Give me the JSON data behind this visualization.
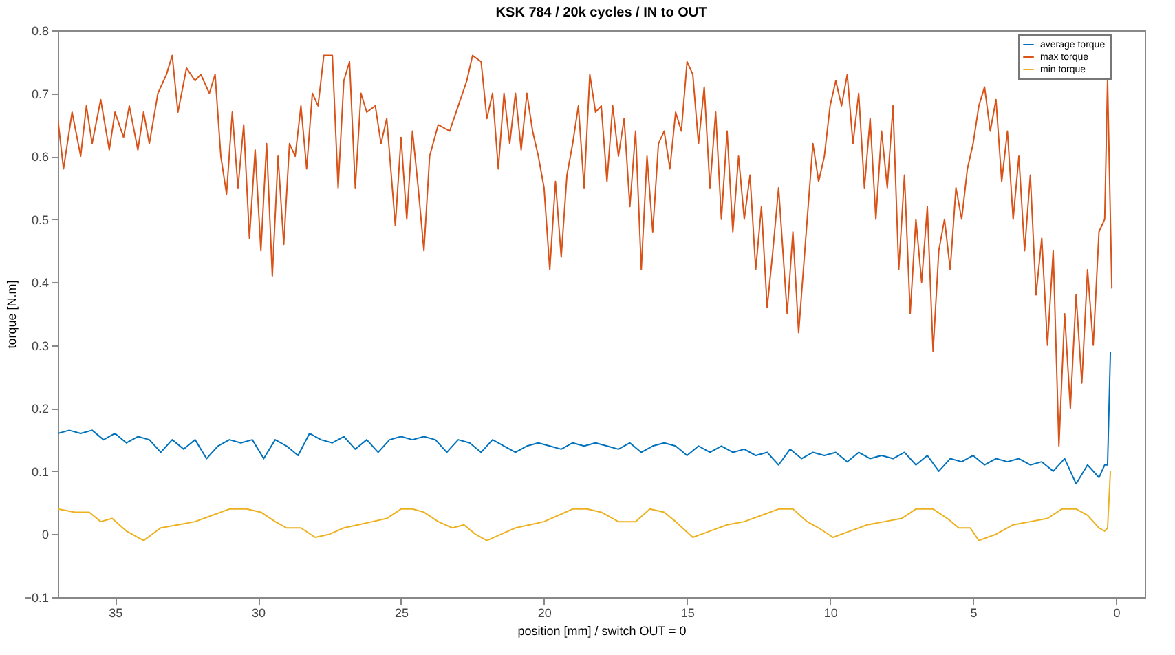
{
  "chart_data": {
    "type": "line",
    "title": "KSK 784 / 20k cycles / IN to OUT",
    "xlabel": "position [mm] / switch OUT = 0",
    "ylabel": "torque [N.m]",
    "xlim": [
      37,
      -1
    ],
    "xticks": [
      35,
      30,
      25,
      20,
      15,
      10,
      5,
      0
    ],
    "ylim": [
      -0.1,
      0.8
    ],
    "yticks": [
      -0.1,
      0,
      0.1,
      0.2,
      0.3,
      0.4,
      0.5,
      0.6,
      0.7,
      0.8
    ],
    "grid": false,
    "legend": "top right",
    "line_style": "solid",
    "marker": "none",
    "series": [
      {
        "name": "average torque",
        "color": "#0072bd",
        "x": [
          37,
          36.6,
          36.2,
          35.8,
          35.4,
          35,
          34.6,
          34.2,
          33.8,
          33.4,
          33,
          32.6,
          32.2,
          31.8,
          31.4,
          31,
          30.6,
          30.2,
          29.8,
          29.4,
          29,
          28.6,
          28.2,
          27.8,
          27.4,
          27,
          26.6,
          26.2,
          25.8,
          25.4,
          25,
          24.6,
          24.2,
          23.8,
          23.4,
          23,
          22.6,
          22.2,
          21.8,
          21.4,
          21,
          20.6,
          20.2,
          19.8,
          19.4,
          19,
          18.6,
          18.2,
          17.8,
          17.4,
          17,
          16.6,
          16.2,
          15.8,
          15.4,
          15,
          14.6,
          14.2,
          13.8,
          13.4,
          13,
          12.6,
          12.2,
          11.8,
          11.4,
          11,
          10.6,
          10.2,
          9.8,
          9.4,
          9,
          8.6,
          8.2,
          7.8,
          7.4,
          7,
          6.6,
          6.2,
          5.8,
          5.4,
          5,
          4.6,
          4.2,
          3.8,
          3.4,
          3,
          2.6,
          2.2,
          1.8,
          1.4,
          1,
          0.6,
          0.4,
          0.3,
          0.2
        ],
        "values": [
          0.16,
          0.165,
          0.16,
          0.165,
          0.15,
          0.16,
          0.145,
          0.155,
          0.15,
          0.13,
          0.15,
          0.135,
          0.15,
          0.12,
          0.14,
          0.15,
          0.145,
          0.15,
          0.12,
          0.15,
          0.14,
          0.125,
          0.16,
          0.15,
          0.145,
          0.155,
          0.135,
          0.15,
          0.13,
          0.15,
          0.155,
          0.15,
          0.155,
          0.15,
          0.13,
          0.15,
          0.145,
          0.13,
          0.15,
          0.14,
          0.13,
          0.14,
          0.145,
          0.14,
          0.135,
          0.145,
          0.14,
          0.145,
          0.14,
          0.135,
          0.145,
          0.13,
          0.14,
          0.145,
          0.14,
          0.125,
          0.14,
          0.13,
          0.14,
          0.13,
          0.135,
          0.125,
          0.13,
          0.11,
          0.135,
          0.12,
          0.13,
          0.125,
          0.13,
          0.115,
          0.13,
          0.12,
          0.125,
          0.12,
          0.13,
          0.11,
          0.125,
          0.1,
          0.12,
          0.115,
          0.125,
          0.11,
          0.12,
          0.115,
          0.12,
          0.11,
          0.115,
          0.1,
          0.12,
          0.08,
          0.11,
          0.09,
          0.11,
          0.11,
          0.29
        ]
      },
      {
        "name": "max torque",
        "color": "#d95319",
        "x": [
          37,
          36.8,
          36.5,
          36.2,
          36,
          35.8,
          35.5,
          35.2,
          35,
          34.7,
          34.5,
          34.2,
          34,
          33.8,
          33.5,
          33.2,
          33,
          32.8,
          32.5,
          32.2,
          32,
          31.7,
          31.5,
          31.3,
          31.1,
          30.9,
          30.7,
          30.5,
          30.3,
          30.1,
          29.9,
          29.7,
          29.5,
          29.3,
          29.1,
          28.9,
          28.7,
          28.5,
          28.3,
          28.1,
          27.9,
          27.7,
          27.4,
          27.2,
          27,
          26.8,
          26.6,
          26.4,
          26.2,
          25.9,
          25.7,
          25.5,
          25.2,
          25,
          24.8,
          24.6,
          24.4,
          24.2,
          24,
          23.7,
          23.3,
          23,
          22.7,
          22.5,
          22.2,
          22,
          21.8,
          21.6,
          21.4,
          21.2,
          21,
          20.8,
          20.6,
          20.4,
          20.2,
          20,
          19.8,
          19.6,
          19.4,
          19.2,
          19,
          18.8,
          18.6,
          18.4,
          18.2,
          18,
          17.8,
          17.6,
          17.4,
          17.2,
          17,
          16.8,
          16.6,
          16.4,
          16.2,
          16,
          15.8,
          15.6,
          15.4,
          15.2,
          15,
          14.8,
          14.6,
          14.4,
          14.2,
          14,
          13.8,
          13.6,
          13.4,
          13.2,
          13,
          12.8,
          12.6,
          12.4,
          12.2,
          12,
          11.8,
          11.5,
          11.3,
          11.1,
          11,
          10.8,
          10.6,
          10.4,
          10.2,
          10,
          9.8,
          9.6,
          9.4,
          9.2,
          9,
          8.8,
          8.6,
          8.4,
          8.2,
          8,
          7.8,
          7.6,
          7.4,
          7.2,
          7,
          6.8,
          6.6,
          6.4,
          6.2,
          6,
          5.8,
          5.6,
          5.4,
          5.2,
          5,
          4.8,
          4.6,
          4.4,
          4.2,
          4,
          3.8,
          3.6,
          3.4,
          3.2,
          3,
          2.8,
          2.6,
          2.4,
          2.2,
          2,
          1.8,
          1.6,
          1.4,
          1.2,
          1,
          0.8,
          0.6,
          0.4,
          0.3,
          0.15
        ],
        "values": [
          0.66,
          0.58,
          0.67,
          0.6,
          0.68,
          0.62,
          0.69,
          0.61,
          0.67,
          0.63,
          0.68,
          0.61,
          0.67,
          0.62,
          0.7,
          0.73,
          0.76,
          0.67,
          0.74,
          0.72,
          0.73,
          0.7,
          0.73,
          0.6,
          0.54,
          0.67,
          0.55,
          0.65,
          0.47,
          0.61,
          0.45,
          0.62,
          0.41,
          0.6,
          0.46,
          0.62,
          0.6,
          0.68,
          0.58,
          0.7,
          0.68,
          0.76,
          0.76,
          0.55,
          0.72,
          0.75,
          0.55,
          0.7,
          0.67,
          0.68,
          0.62,
          0.66,
          0.49,
          0.63,
          0.5,
          0.64,
          0.55,
          0.45,
          0.6,
          0.65,
          0.64,
          0.68,
          0.72,
          0.76,
          0.75,
          0.66,
          0.7,
          0.58,
          0.7,
          0.62,
          0.7,
          0.61,
          0.7,
          0.64,
          0.6,
          0.55,
          0.42,
          0.56,
          0.44,
          0.57,
          0.62,
          0.68,
          0.55,
          0.73,
          0.67,
          0.68,
          0.56,
          0.68,
          0.6,
          0.66,
          0.52,
          0.64,
          0.42,
          0.6,
          0.48,
          0.62,
          0.64,
          0.58,
          0.67,
          0.64,
          0.75,
          0.73,
          0.62,
          0.71,
          0.55,
          0.67,
          0.5,
          0.64,
          0.48,
          0.6,
          0.5,
          0.57,
          0.42,
          0.52,
          0.36,
          0.45,
          0.55,
          0.35,
          0.48,
          0.32,
          0.38,
          0.5,
          0.62,
          0.56,
          0.6,
          0.68,
          0.72,
          0.68,
          0.73,
          0.62,
          0.7,
          0.55,
          0.66,
          0.5,
          0.64,
          0.55,
          0.68,
          0.42,
          0.57,
          0.35,
          0.5,
          0.4,
          0.52,
          0.29,
          0.45,
          0.5,
          0.42,
          0.55,
          0.5,
          0.58,
          0.62,
          0.68,
          0.71,
          0.64,
          0.69,
          0.56,
          0.64,
          0.5,
          0.6,
          0.45,
          0.57,
          0.38,
          0.47,
          0.3,
          0.45,
          0.14,
          0.35,
          0.2,
          0.38,
          0.24,
          0.42,
          0.3,
          0.48,
          0.5,
          0.72,
          0.39
        ]
      },
      {
        "name": "min torque",
        "color": "#edb120",
        "x": [
          37,
          36.4,
          35.9,
          35.5,
          35.1,
          34.6,
          34,
          33.4,
          32.8,
          32.2,
          31.6,
          31,
          30.4,
          29.9,
          29.4,
          29,
          28.5,
          28,
          27.5,
          27,
          26.5,
          26,
          25.5,
          25,
          24.6,
          24.2,
          23.7,
          23.2,
          22.8,
          22.4,
          22,
          21.5,
          21,
          20.5,
          20,
          19.5,
          19,
          18.5,
          18,
          17.4,
          16.8,
          16.3,
          15.8,
          15.4,
          14.8,
          14.2,
          13.6,
          13,
          12.4,
          11.8,
          11.3,
          10.8,
          10.4,
          9.9,
          9.3,
          8.7,
          8.1,
          7.5,
          7,
          6.4,
          5.9,
          5.5,
          5.1,
          4.8,
          4.2,
          3.6,
          3,
          2.4,
          1.9,
          1.4,
          1,
          0.6,
          0.4,
          0.3,
          0.2
        ],
        "values": [
          0.04,
          0.035,
          0.035,
          0.02,
          0.025,
          0.005,
          -0.01,
          0.01,
          0.015,
          0.02,
          0.03,
          0.04,
          0.04,
          0.035,
          0.02,
          0.01,
          0.01,
          -0.005,
          0.0,
          0.01,
          0.015,
          0.02,
          0.025,
          0.04,
          0.04,
          0.035,
          0.02,
          0.01,
          0.015,
          0.0,
          -0.01,
          0.0,
          0.01,
          0.015,
          0.02,
          0.03,
          0.04,
          0.04,
          0.035,
          0.02,
          0.02,
          0.04,
          0.035,
          0.02,
          -0.005,
          0.005,
          0.015,
          0.02,
          0.03,
          0.04,
          0.04,
          0.02,
          0.01,
          -0.005,
          0.005,
          0.015,
          0.02,
          0.025,
          0.04,
          0.04,
          0.025,
          0.01,
          0.01,
          -0.01,
          0.0,
          0.015,
          0.02,
          0.025,
          0.04,
          0.04,
          0.03,
          0.01,
          0.005,
          0.01,
          0.1
        ]
      }
    ]
  }
}
